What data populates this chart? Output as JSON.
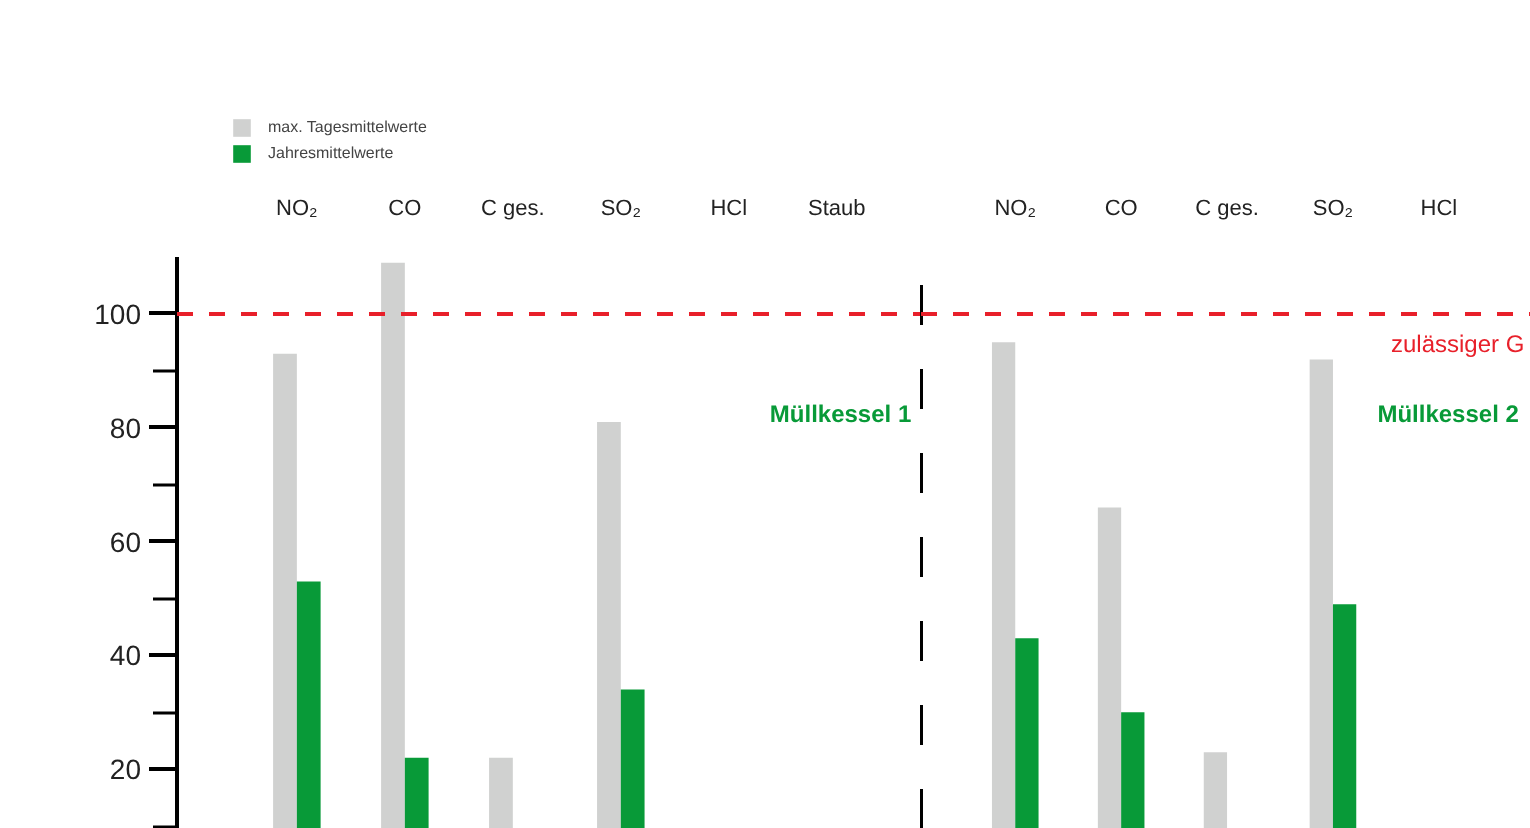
{
  "chart_data": [
    {
      "type": "bar",
      "categories": [
        "NO₂",
        "CO",
        "C ges.",
        "SO₂",
        "HCl",
        "Staub"
      ],
      "series": [
        {
          "name": "max. Tagesmittelwerte",
          "color": "#d0d1d0",
          "values": [
            93,
            109,
            22,
            81,
            null,
            null
          ]
        },
        {
          "name": "Jahresmittelwerte",
          "color": "#089a38",
          "values": [
            53,
            22,
            null,
            34,
            null,
            null
          ]
        }
      ],
      "ylim": [
        9.5,
        110
      ],
      "yticks": [
        {
          "value": 10,
          "label": null
        },
        20,
        {
          "value": 30,
          "label": null
        },
        40,
        {
          "value": 50,
          "label": null
        },
        60,
        {
          "value": 70,
          "label": null
        },
        80,
        {
          "value": 90,
          "label": null
        },
        100
      ],
      "ref_lines": [
        {
          "axis": "y",
          "value": 100,
          "color": "#e8202a",
          "line_style": "dashed"
        }
      ],
      "annotations": [
        "Müllkessel 1"
      ],
      "legend": "top left",
      "grid": false
    },
    {
      "type": "bar",
      "categories": [
        "NO₂",
        "CO",
        "C ges.",
        "SO₂",
        "HCl"
      ],
      "series": [
        {
          "color": "#d0d1d0",
          "values": [
            95,
            66,
            23,
            92,
            null
          ]
        },
        {
          "color": "#089a38",
          "values": [
            43,
            30,
            null,
            49,
            null
          ]
        }
      ],
      "ylim": [
        9.5,
        110
      ],
      "tick_labels": "x",
      "ref_lines": [
        {
          "axis": "y",
          "value": 100,
          "label": "zulässiger G",
          "color": "#e8202a",
          "line_style": "dashed"
        }
      ],
      "annotations": [
        "Müllkessel 2"
      ],
      "grid": false
    }
  ]
}
